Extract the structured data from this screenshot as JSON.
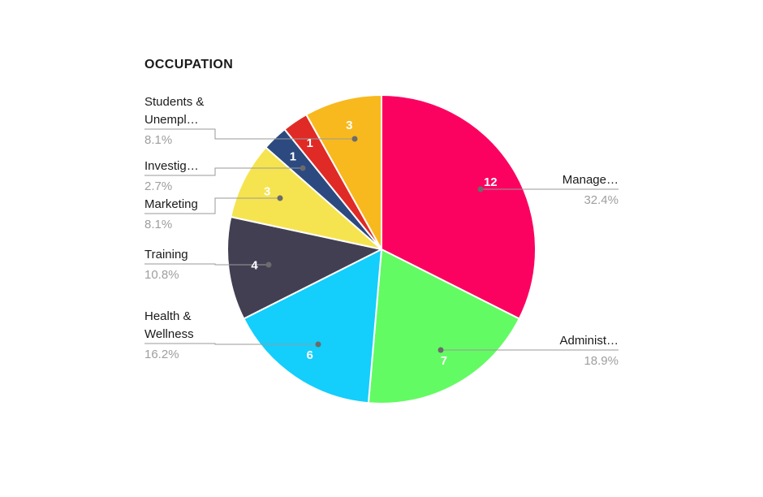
{
  "title": "OCCUPATION",
  "chart_data": {
    "type": "pie",
    "title": "OCCUPATION",
    "total": 37,
    "start_angle_deg": 0,
    "direction": "clockwise",
    "legend": "none",
    "background": "#ffffff",
    "value_label_color": "#ffffff",
    "connector_color": "#9a9a9a",
    "dot_color": "#6b6b6b",
    "slices": [
      {
        "id": "manage",
        "label": "Manage…",
        "label_lines": [
          "Manage…"
        ],
        "value": 12,
        "pct": "32.4%",
        "color": "#FB0261"
      },
      {
        "id": "administ",
        "label": "Administ…",
        "label_lines": [
          "Administ…"
        ],
        "value": 7,
        "pct": "18.9%",
        "color": "#63FB63"
      },
      {
        "id": "health",
        "label": "Health & Wellness",
        "label_lines": [
          "Health &",
          "Wellness"
        ],
        "value": 6,
        "pct": "16.2%",
        "color": "#14CEFB"
      },
      {
        "id": "training",
        "label": "Training",
        "label_lines": [
          "Training"
        ],
        "value": 4,
        "pct": "10.8%",
        "color": "#423F53"
      },
      {
        "id": "marketing",
        "label": "Marketing",
        "label_lines": [
          "Marketing"
        ],
        "value": 3,
        "pct": "8.1%",
        "color": "#F5E44F"
      },
      {
        "id": "investig",
        "label": "Investig…",
        "label_lines": [
          "Investig…"
        ],
        "value": 1,
        "pct": "2.7%",
        "color": "#2C4A7F"
      },
      {
        "id": "unlabeled",
        "label": null,
        "label_lines": null,
        "value": 1,
        "pct": null,
        "color": "#E02A26"
      },
      {
        "id": "students",
        "label": "Students & Unempl…",
        "label_lines": [
          "Students &",
          "Unempl…"
        ],
        "value": 3,
        "pct": "8.1%",
        "color": "#F8B91E"
      }
    ]
  }
}
